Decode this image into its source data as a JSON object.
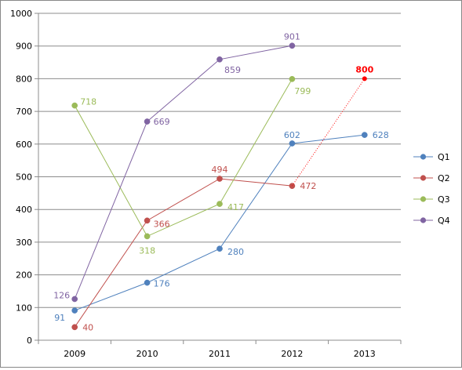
{
  "chart_data": {
    "type": "line",
    "title": "",
    "xlabel": "",
    "ylabel": "",
    "categories": [
      "2009",
      "2010",
      "2011",
      "2012",
      "2013"
    ],
    "ylim": [
      0,
      1000
    ],
    "yticks": [
      0,
      100,
      200,
      300,
      400,
      500,
      600,
      700,
      800,
      900,
      1000
    ],
    "grid": "horizontal",
    "legend": "right",
    "series": [
      {
        "name": "Q1",
        "color": "#4F81BD",
        "values": [
          91,
          176,
          280,
          602,
          628
        ]
      },
      {
        "name": "Q2",
        "color": "#C0504D",
        "values": [
          40,
          366,
          494,
          472,
          null
        ]
      },
      {
        "name": "Q3",
        "color": "#9BBB59",
        "values": [
          718,
          318,
          417,
          799,
          null
        ]
      },
      {
        "name": "Q4",
        "color": "#8064A2",
        "values": [
          126,
          669,
          859,
          901,
          null
        ]
      }
    ],
    "highlight": {
      "category": "2013",
      "value": 800,
      "label": "800",
      "color": "#FF0000",
      "from": {
        "category": "2012",
        "value": 472
      },
      "line_style": "dotted"
    }
  }
}
